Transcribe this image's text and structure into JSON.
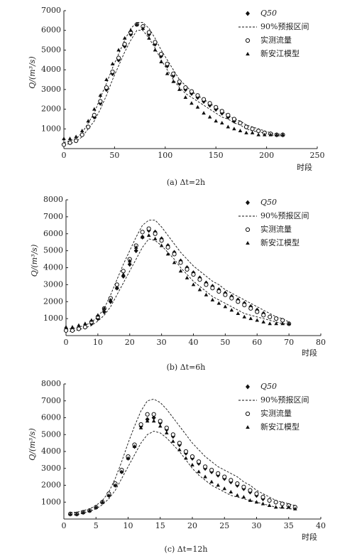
{
  "chart_data": [
    {
      "type": "line",
      "caption": "(a) Δt=2h",
      "xlabel": "时段",
      "ylabel": "Q/(m³/s)",
      "xlim": [
        0,
        250
      ],
      "xticks": [
        0,
        50,
        100,
        150,
        200,
        250
      ],
      "ylim": [
        0,
        7000
      ],
      "yticks": [
        1000,
        2000,
        3000,
        4000,
        5000,
        6000,
        7000
      ],
      "x": [
        0,
        6,
        12,
        18,
        24,
        30,
        36,
        42,
        48,
        54,
        60,
        66,
        72,
        78,
        84,
        90,
        96,
        102,
        108,
        114,
        120,
        126,
        132,
        138,
        144,
        150,
        156,
        162,
        168,
        174,
        180,
        186,
        192,
        198,
        204,
        210,
        216
      ],
      "series": [
        {
          "name": "Q50",
          "marker": "diamond",
          "color": "#111111",
          "values": [
            200,
            300,
            400,
            700,
            1100,
            1600,
            2300,
            3000,
            3800,
            4500,
            5200,
            5800,
            6300,
            6200,
            5800,
            5300,
            4700,
            4200,
            3700,
            3300,
            3000,
            2800,
            2600,
            2400,
            2200,
            2000,
            1800,
            1600,
            1400,
            1300,
            1100,
            1000,
            900,
            800,
            750,
            700,
            700
          ]
        },
        {
          "name": "90%预报区间",
          "marker": "band",
          "color": "#111111",
          "upper": [
            300,
            400,
            500,
            800,
            1300,
            1800,
            2600,
            3300,
            4100,
            4800,
            5500,
            6100,
            6400,
            6400,
            6100,
            5600,
            5000,
            4500,
            4000,
            3500,
            3200,
            2900,
            2700,
            2500,
            2300,
            2100,
            1900,
            1700,
            1500,
            1400,
            1200,
            1100,
            1000,
            900,
            800,
            750,
            700
          ],
          "lower": [
            200,
            250,
            350,
            600,
            1000,
            1400,
            2000,
            2700,
            3500,
            4200,
            4900,
            5500,
            6000,
            6000,
            5600,
            5100,
            4500,
            4000,
            3500,
            3100,
            2800,
            2600,
            2400,
            2200,
            2000,
            1800,
            1600,
            1500,
            1300,
            1200,
            1000,
            900,
            850,
            800,
            700,
            650,
            650
          ]
        },
        {
          "name": "实测流量",
          "marker": "circle",
          "color": "#111111",
          "values": [
            200,
            300,
            400,
            700,
            1100,
            1700,
            2400,
            3100,
            3900,
            4600,
            5300,
            5900,
            6300,
            6200,
            5900,
            5400,
            4800,
            4300,
            3800,
            3400,
            3100,
            2900,
            2700,
            2500,
            2300,
            2100,
            1900,
            1700,
            1500,
            1300,
            1100,
            1000,
            900,
            800,
            750,
            700,
            700
          ]
        },
        {
          "name": "新安江模型",
          "marker": "triangle",
          "color": "#111111",
          "values": [
            500,
            500,
            600,
            900,
            1400,
            2000,
            2700,
            3500,
            4300,
            5000,
            5600,
            6000,
            6300,
            6100,
            5600,
            5000,
            4400,
            3800,
            3400,
            3000,
            2600,
            2300,
            2100,
            1800,
            1600,
            1400,
            1300,
            1100,
            1000,
            900,
            800,
            800,
            700,
            700,
            700,
            700,
            700
          ]
        }
      ]
    },
    {
      "type": "line",
      "caption": "(b) Δt=6h",
      "xlabel": "时段",
      "ylabel": "Q/(m³/s)",
      "xlim": [
        0,
        80
      ],
      "xticks": [
        0,
        10,
        20,
        30,
        40,
        50,
        60,
        70,
        80
      ],
      "ylim": [
        0,
        8000
      ],
      "yticks": [
        1000,
        2000,
        3000,
        4000,
        5000,
        6000,
        7000,
        8000
      ],
      "x": [
        0,
        2,
        4,
        6,
        8,
        10,
        12,
        14,
        16,
        18,
        20,
        22,
        24,
        26,
        28,
        30,
        32,
        34,
        36,
        38,
        40,
        42,
        44,
        46,
        48,
        50,
        52,
        54,
        56,
        58,
        60,
        62,
        64,
        66,
        68,
        70
      ],
      "series": [
        {
          "name": "Q50",
          "marker": "diamond",
          "color": "#111111",
          "values": [
            300,
            300,
            400,
            500,
            700,
            1000,
            1400,
            2000,
            2800,
            3500,
            4200,
            5000,
            5800,
            6200,
            6100,
            5700,
            5300,
            4900,
            4400,
            4000,
            3700,
            3400,
            3100,
            2900,
            2700,
            2500,
            2300,
            2100,
            1900,
            1700,
            1500,
            1300,
            1100,
            1000,
            900,
            700
          ]
        },
        {
          "name": "90%预报区间",
          "marker": "band",
          "color": "#111111",
          "upper": [
            400,
            400,
            500,
            600,
            800,
            1100,
            1600,
            2400,
            3300,
            4200,
            5000,
            5800,
            6500,
            6800,
            6800,
            6400,
            5900,
            5400,
            4900,
            4500,
            4100,
            3800,
            3500,
            3200,
            3000,
            2700,
            2500,
            2300,
            2100,
            1900,
            1700,
            1500,
            1300,
            1100,
            1000,
            800
          ],
          "lower": [
            250,
            250,
            350,
            450,
            600,
            850,
            1200,
            1700,
            2400,
            3100,
            3800,
            4500,
            5200,
            5700,
            5600,
            5300,
            4900,
            4500,
            4000,
            3600,
            3200,
            2900,
            2600,
            2300,
            2100,
            1900,
            1700,
            1500,
            1300,
            1200,
            1100,
            1000,
            900,
            800,
            700,
            700
          ]
        },
        {
          "name": "实测流量",
          "marker": "circle",
          "color": "#111111",
          "values": [
            300,
            300,
            400,
            500,
            800,
            1100,
            1600,
            2200,
            3000,
            3800,
            4500,
            5300,
            6100,
            6300,
            6000,
            5600,
            5200,
            4800,
            4300,
            3900,
            3600,
            3300,
            3000,
            2800,
            2600,
            2400,
            2200,
            2000,
            1800,
            1600,
            1400,
            1200,
            1100,
            1000,
            900,
            700
          ]
        },
        {
          "name": "新安江模型",
          "marker": "triangle",
          "color": "#111111",
          "values": [
            500,
            500,
            600,
            700,
            900,
            1200,
            1600,
            2100,
            2800,
            3600,
            4400,
            5200,
            5800,
            5900,
            5700,
            5300,
            4800,
            4300,
            3800,
            3400,
            3000,
            2700,
            2400,
            2100,
            1900,
            1700,
            1500,
            1300,
            1100,
            1000,
            900,
            800,
            700,
            700,
            700,
            700
          ]
        }
      ]
    },
    {
      "type": "line",
      "caption": "(c) Δt=12h",
      "xlabel": "时段",
      "ylabel": "Q/(m³/s)",
      "xlim": [
        0,
        40
      ],
      "xticks": [
        0,
        5,
        10,
        15,
        20,
        25,
        30,
        35,
        40
      ],
      "ylim": [
        0,
        8000
      ],
      "yticks": [
        1000,
        2000,
        3000,
        4000,
        5000,
        6000,
        7000,
        8000
      ],
      "x": [
        1,
        2,
        3,
        4,
        5,
        6,
        7,
        8,
        9,
        10,
        11,
        12,
        13,
        14,
        15,
        16,
        17,
        18,
        19,
        20,
        21,
        22,
        23,
        24,
        25,
        26,
        27,
        28,
        29,
        30,
        31,
        32,
        33,
        34,
        35,
        36
      ],
      "series": [
        {
          "name": "Q50",
          "marker": "diamond",
          "color": "#111111",
          "values": [
            300,
            300,
            400,
            500,
            700,
            1000,
            1400,
            2000,
            2800,
            3600,
            4300,
            5500,
            5900,
            6000,
            5700,
            5300,
            4900,
            4400,
            3900,
            3600,
            3300,
            3000,
            2800,
            2600,
            2400,
            2200,
            2000,
            1800,
            1600,
            1400,
            1200,
            1100,
            1000,
            900,
            800,
            700
          ]
        },
        {
          "name": "90%预报区间",
          "marker": "band",
          "color": "#111111",
          "upper": [
            400,
            400,
            500,
            600,
            800,
            1100,
            1600,
            2400,
            3400,
            4500,
            5500,
            6400,
            7000,
            7100,
            6900,
            6500,
            6000,
            5500,
            5000,
            4500,
            4100,
            3700,
            3400,
            3100,
            2900,
            2700,
            2500,
            2200,
            2000,
            1700,
            1500,
            1300,
            1100,
            1000,
            900,
            800
          ],
          "lower": [
            250,
            250,
            350,
            450,
            600,
            850,
            1200,
            1700,
            2400,
            3100,
            3800,
            4500,
            5000,
            5200,
            5100,
            4800,
            4400,
            4000,
            3500,
            3000,
            2600,
            2300,
            2000,
            1800,
            1600,
            1400,
            1300,
            1200,
            1100,
            1000,
            900,
            800,
            700,
            650,
            600,
            600
          ]
        },
        {
          "name": "实测流量",
          "marker": "circle",
          "color": "#111111",
          "values": [
            300,
            300,
            400,
            500,
            700,
            1000,
            1500,
            2100,
            2900,
            3700,
            4400,
            5600,
            6200,
            6200,
            5800,
            5400,
            5000,
            4500,
            4000,
            3700,
            3400,
            3100,
            2900,
            2700,
            2500,
            2300,
            2100,
            1900,
            1700,
            1500,
            1300,
            1100,
            1000,
            900,
            800,
            700
          ]
        },
        {
          "name": "新安江模型",
          "marker": "triangle",
          "color": "#111111",
          "values": [
            300,
            300,
            400,
            500,
            700,
            1000,
            1400,
            2000,
            2800,
            3600,
            4300,
            5400,
            5800,
            5800,
            5500,
            5100,
            4600,
            4100,
            3600,
            3200,
            2800,
            2500,
            2200,
            2000,
            1800,
            1600,
            1400,
            1300,
            1100,
            1000,
            900,
            800,
            700,
            700,
            700,
            600
          ]
        }
      ]
    }
  ]
}
